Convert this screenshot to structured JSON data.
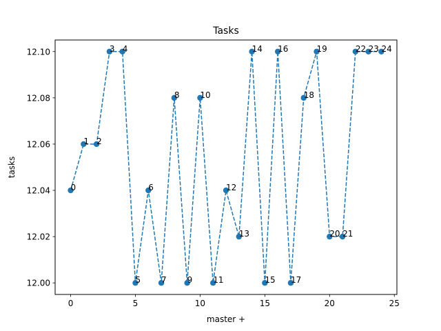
{
  "chart_data": {
    "type": "line",
    "title": "Tasks",
    "xlabel": "master +",
    "ylabel": "tasks",
    "x": [
      0,
      1,
      2,
      3,
      4,
      5,
      6,
      7,
      8,
      9,
      10,
      11,
      12,
      13,
      14,
      15,
      16,
      17,
      18,
      19,
      20,
      21,
      22,
      23,
      24
    ],
    "y": [
      12.04,
      12.06,
      12.06,
      12.1,
      12.1,
      12.0,
      12.04,
      12.0,
      12.08,
      12.0,
      12.08,
      12.0,
      12.04,
      12.02,
      12.1,
      12.0,
      12.1,
      12.0,
      12.08,
      12.1,
      12.02,
      12.02,
      12.1,
      12.1,
      12.1
    ],
    "point_labels": [
      "0",
      "1",
      "2",
      "3",
      "4",
      "5",
      "6",
      "7",
      "8",
      "9",
      "10",
      "11",
      "12",
      "13",
      "14",
      "15",
      "16",
      "17",
      "18",
      "19",
      "20",
      "21",
      "22",
      "23",
      "24"
    ],
    "xlim": [
      -1.2,
      25.2
    ],
    "ylim": [
      11.995,
      12.105
    ],
    "xticks": [
      0,
      5,
      10,
      15,
      20,
      25
    ],
    "xtick_labels": [
      "0",
      "5",
      "10",
      "15",
      "20",
      "25"
    ],
    "yticks": [
      12.0,
      12.02,
      12.04,
      12.06,
      12.08,
      12.1
    ],
    "ytick_labels": [
      "12.00",
      "12.02",
      "12.04",
      "12.06",
      "12.08",
      "12.10"
    ],
    "line_style": "dashed",
    "marker": "circle",
    "color": "#1f77b4",
    "grid": false,
    "legend": false
  }
}
